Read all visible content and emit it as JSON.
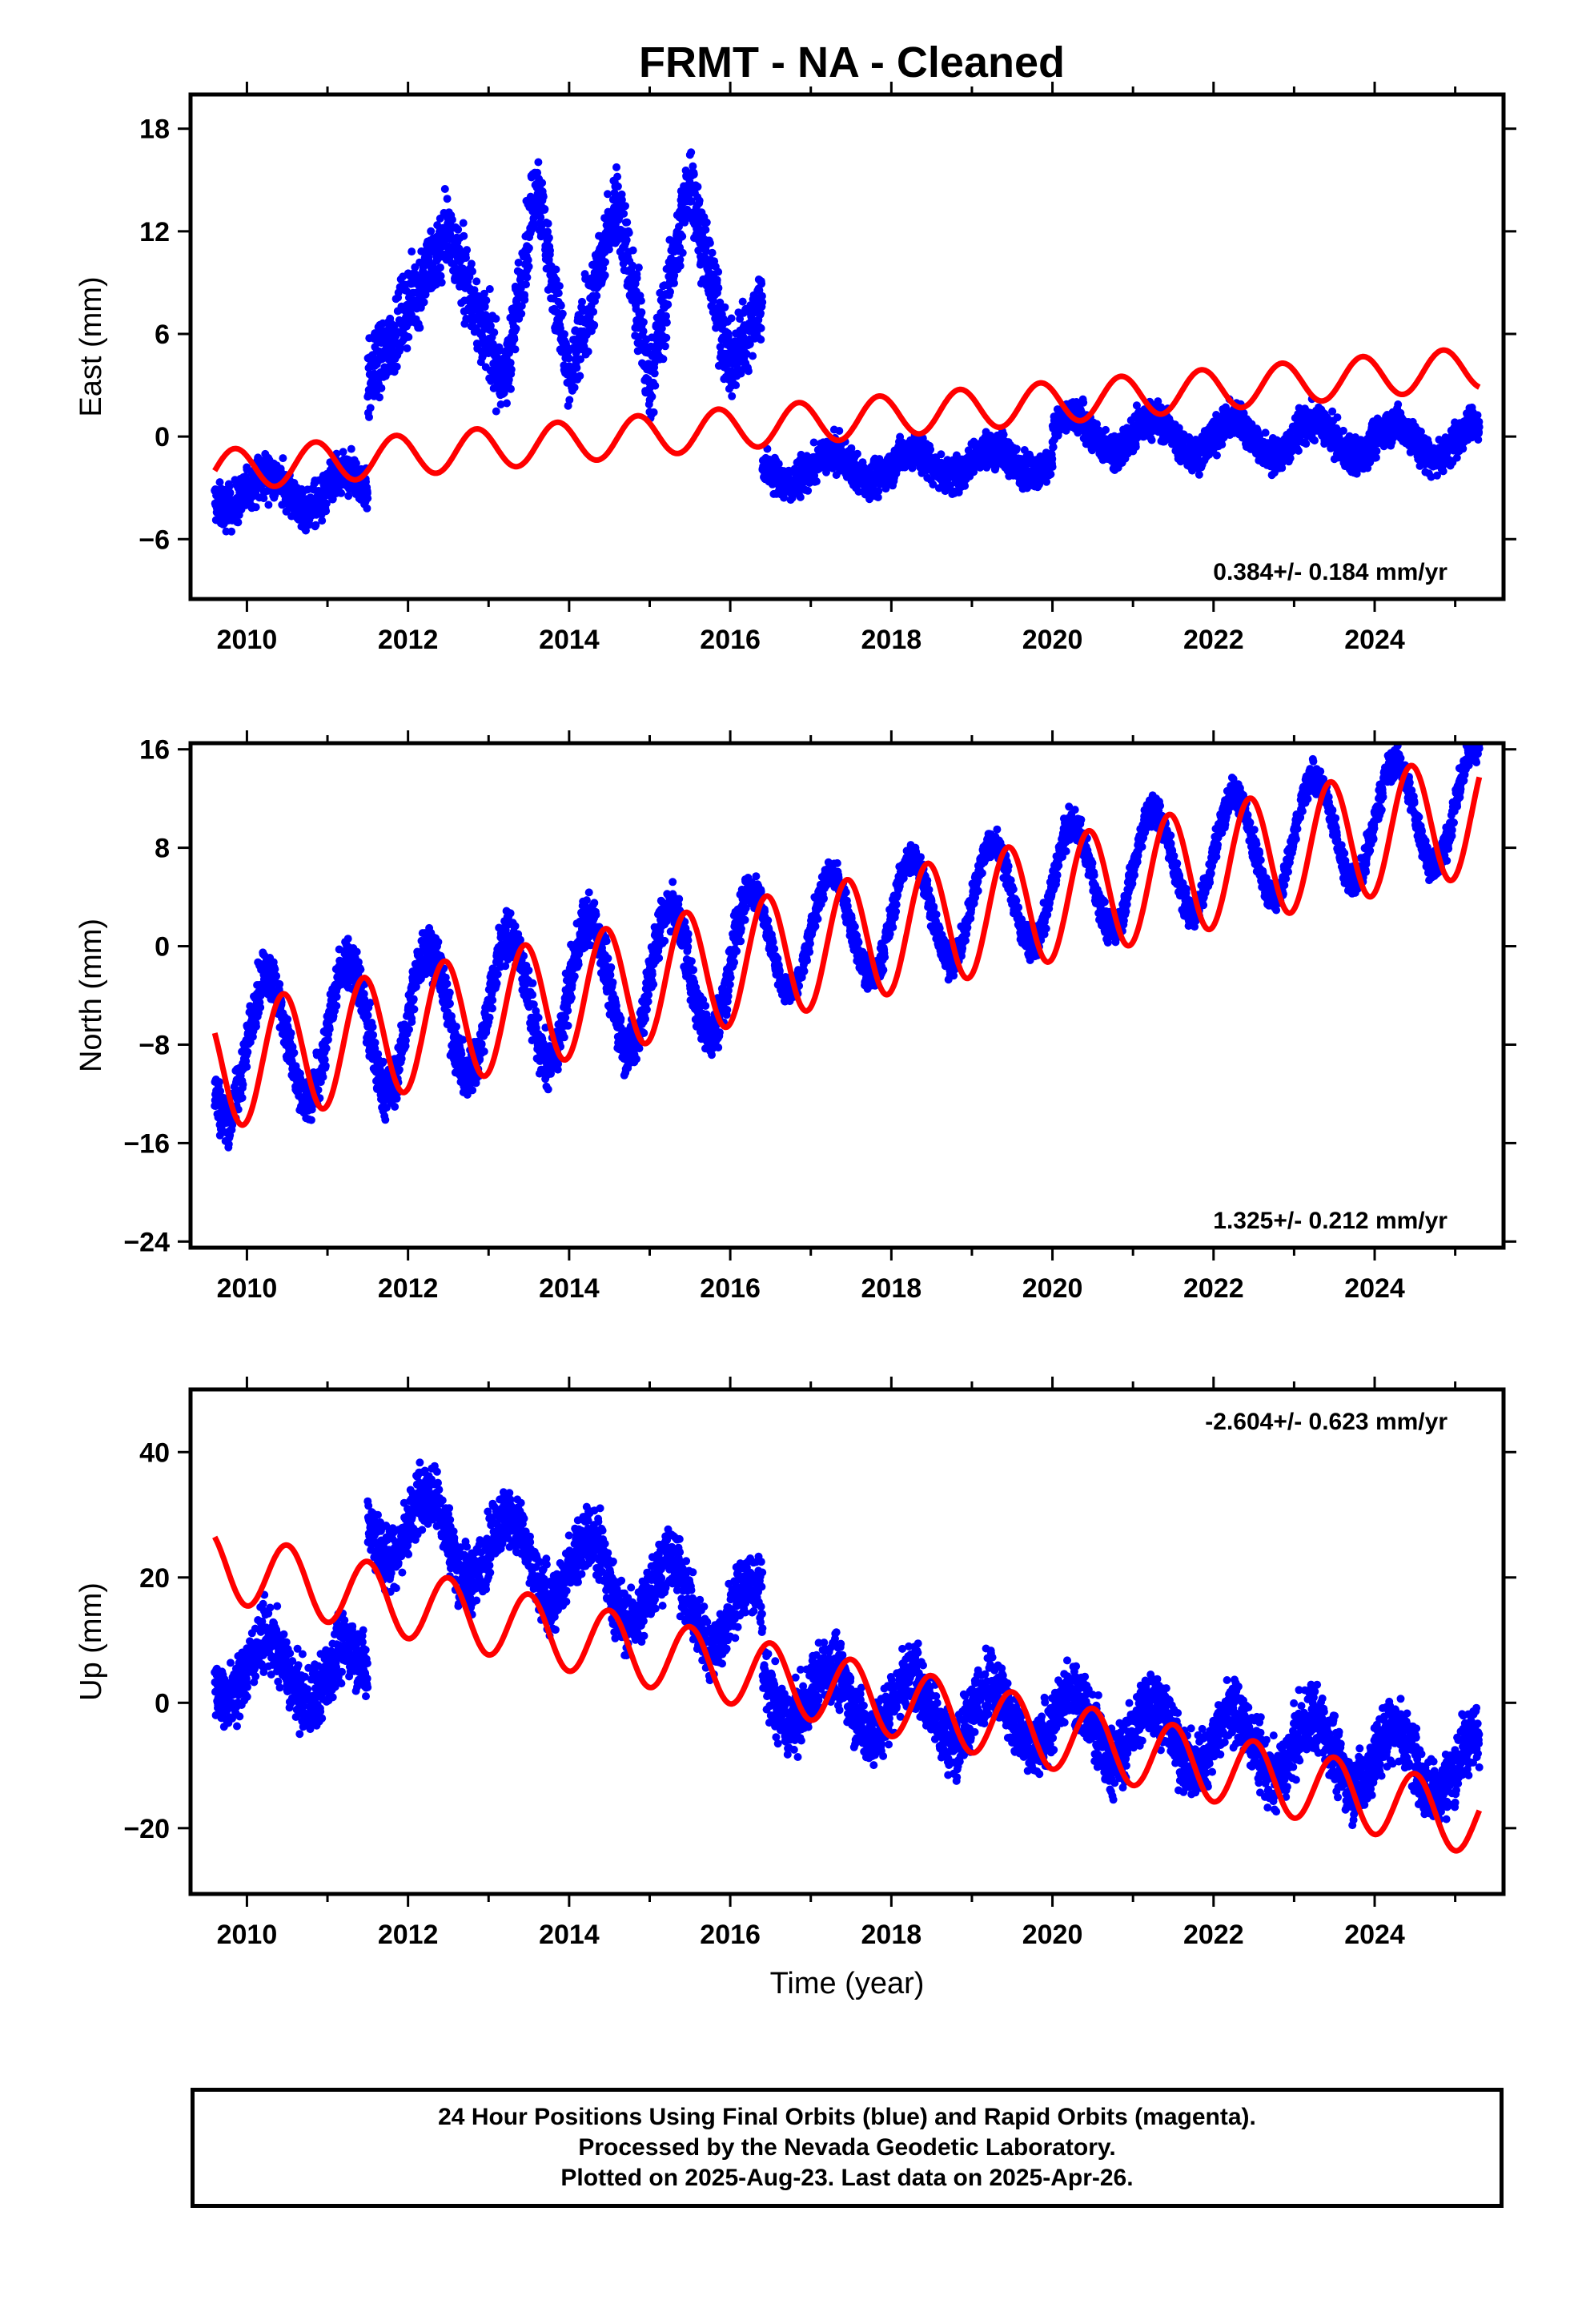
{
  "title": "FRMT  - NA - Cleaned",
  "footer": {
    "line1": "24 Hour Positions Using Final Orbits (blue) and Rapid Orbits (magenta).",
    "line2": "Processed by the Nevada Geodetic Laboratory.",
    "line3": "Plotted on 2025-Aug-23. Last data on 2025-Apr-26."
  },
  "colors": {
    "data": "#0000ff",
    "model": "#ff0000",
    "axes": "#000000"
  },
  "chart_data": [
    {
      "type": "scatter",
      "name": "east",
      "ylabel": "East (mm)",
      "xlabel": "",
      "rate_text": "0.384+/- 0.184 mm/yr",
      "rate_position": "bottom-right",
      "xlim": [
        2009.3,
        2025.6
      ],
      "ylim": [
        -9.5,
        20.0
      ],
      "x_ticks": [
        2010,
        2012,
        2014,
        2016,
        2018,
        2020,
        2022,
        2024
      ],
      "y_ticks": [
        -6,
        0,
        6,
        12,
        18
      ],
      "segments": [
        {
          "x": [
            2009.6,
            2011.5
          ],
          "level": -3.2,
          "amp": 1.0,
          "noise": 1.2
        },
        {
          "x": [
            2011.5,
            2016.4
          ],
          "level_pairs": [
            [
              2011.5,
              3.0
            ],
            [
              2012.5,
              12.0
            ],
            [
              2013.2,
              3.0
            ],
            [
              2013.6,
              15.0
            ],
            [
              2014.0,
              3.0
            ],
            [
              2014.6,
              14.0
            ],
            [
              2015.0,
              3.0
            ],
            [
              2015.5,
              15.0
            ],
            [
              2016.0,
              4.0
            ],
            [
              2016.4,
              8.0
            ]
          ],
          "noise": 2.2
        },
        {
          "x": [
            2016.4,
            2020.0
          ],
          "level": -2.0,
          "trend": 0.2,
          "amp": 0.8,
          "noise": 1.0
        },
        {
          "x": [
            2020.0,
            2025.3
          ],
          "level": 0.2,
          "trend": -0.1,
          "amp": 1.0,
          "noise": 1.0
        }
      ],
      "model": {
        "x0": 2009.6,
        "y0": -2.0,
        "rate": 0.384,
        "amp": 1.2,
        "phase": 0.6
      }
    },
    {
      "type": "scatter",
      "name": "north",
      "ylabel": "North (mm)",
      "xlabel": "",
      "rate_text": "1.325+/- 0.212 mm/yr",
      "rate_position": "bottom-right",
      "xlim": [
        2009.3,
        2025.6
      ],
      "ylim": [
        -24.5,
        16.5
      ],
      "x_ticks": [
        2010,
        2012,
        2014,
        2016,
        2018,
        2020,
        2022,
        2024
      ],
      "y_ticks": [
        -24,
        -16,
        -8,
        0,
        8,
        16
      ],
      "segments": [
        {
          "x": [
            2009.6,
            2016.2
          ],
          "level": -8.5,
          "trend": 1.1,
          "amp": 5.5,
          "noise": 2.0
        },
        {
          "x": [
            2016.2,
            2025.3
          ],
          "level": 0.0,
          "trend": 1.3,
          "amp": 4.5,
          "noise": 1.2
        }
      ],
      "model": {
        "x0": 2009.6,
        "y0": -10.0,
        "rate": 1.325,
        "amp": 5.0,
        "phase": 0.2
      }
    },
    {
      "type": "scatter",
      "name": "up",
      "ylabel": "Up (mm)",
      "xlabel": "Time (year)",
      "rate_text": "-2.604+/- 0.623 mm/yr",
      "rate_position": "top-right",
      "xlim": [
        2009.3,
        2025.6
      ],
      "ylim": [
        -30.5,
        50.0
      ],
      "x_ticks": [
        2010,
        2012,
        2014,
        2016,
        2018,
        2020,
        2022,
        2024
      ],
      "y_ticks": [
        -20,
        0,
        20,
        40
      ],
      "segments": [
        {
          "x": [
            2009.6,
            2011.5
          ],
          "level": 6.0,
          "trend": -1.0,
          "amp": 5.0,
          "noise": 5.0
        },
        {
          "x": [
            2011.5,
            2016.4
          ],
          "level": 30.0,
          "trend": -3.5,
          "amp": 6.0,
          "noise": 5.0
        },
        {
          "x": [
            2016.4,
            2025.3
          ],
          "level": 2.0,
          "trend": -1.4,
          "amp": 5.0,
          "noise": 5.0
        }
      ],
      "model": {
        "x0": 2009.6,
        "y0": 22.0,
        "rate": -2.604,
        "amp": 5.5,
        "phase": 0.25
      }
    }
  ]
}
